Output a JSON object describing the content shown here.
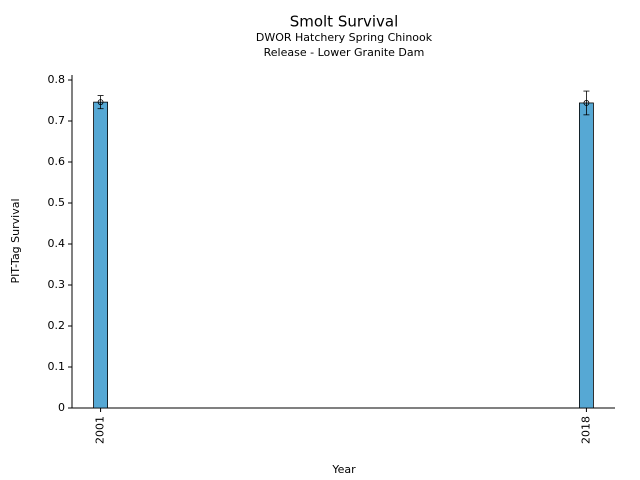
{
  "chart_data": {
    "type": "bar",
    "title": "Smolt Survival",
    "subtitle": [
      "DWOR Hatchery Spring Chinook",
      "Release - Lower Granite Dam"
    ],
    "x_label": "Year",
    "y_label": "PIT-Tag Survival",
    "x": [
      2001,
      2018
    ],
    "values": [
      0.746,
      0.744
    ],
    "errors": [
      0.016,
      0.029
    ],
    "color": "#56a8d4",
    "xlim": [
      2000,
      2019
    ],
    "xticks": [
      2001,
      2018
    ],
    "ylim": [
      0,
      0.8
    ],
    "yticks": [
      0,
      0.1,
      0.2,
      0.3,
      0.4,
      0.5,
      0.6,
      0.7,
      0.8
    ]
  }
}
